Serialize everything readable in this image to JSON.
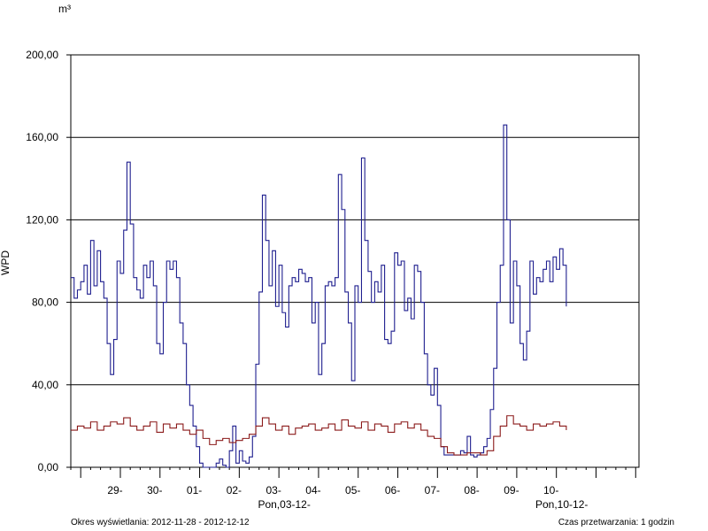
{
  "chart_data": {
    "type": "line",
    "unit": "m³",
    "ylabel": "WPD",
    "ylim": [
      0,
      200
    ],
    "y_ticks": [
      0,
      40,
      80,
      120,
      160,
      200
    ],
    "y_tick_labels": [
      "0,00",
      "40,00",
      "80,00",
      "120,00",
      "160,00",
      "200,00"
    ],
    "grid": "horizontal",
    "x_range_hours": [
      0,
      344
    ],
    "day_ticks": [
      "29-",
      "30-",
      "01-",
      "02-",
      "03-",
      "04-",
      "05-",
      "06-",
      "07-",
      "08-",
      "09-",
      "10-"
    ],
    "week_labels": [
      "Pon,03-12-",
      "Pon,10-12-"
    ],
    "series": [
      {
        "color": "#1f1f8f",
        "points": [
          [
            0,
            92
          ],
          [
            2,
            82
          ],
          [
            4,
            86
          ],
          [
            6,
            90
          ],
          [
            8,
            98
          ],
          [
            10,
            84
          ],
          [
            12,
            110
          ],
          [
            14,
            88
          ],
          [
            16,
            105
          ],
          [
            18,
            90
          ],
          [
            20,
            82
          ],
          [
            22,
            60
          ],
          [
            24,
            45
          ],
          [
            26,
            62
          ],
          [
            28,
            100
          ],
          [
            30,
            94
          ],
          [
            32,
            115
          ],
          [
            34,
            148
          ],
          [
            36,
            118
          ],
          [
            38,
            92
          ],
          [
            40,
            86
          ],
          [
            42,
            82
          ],
          [
            44,
            98
          ],
          [
            46,
            92
          ],
          [
            48,
            100
          ],
          [
            50,
            88
          ],
          [
            52,
            60
          ],
          [
            54,
            55
          ],
          [
            56,
            80
          ],
          [
            58,
            100
          ],
          [
            60,
            96
          ],
          [
            62,
            100
          ],
          [
            64,
            92
          ],
          [
            66,
            70
          ],
          [
            68,
            60
          ],
          [
            70,
            40
          ],
          [
            72,
            30
          ],
          [
            74,
            20
          ],
          [
            76,
            10
          ],
          [
            78,
            2
          ],
          [
            80,
            0
          ],
          [
            82,
            0
          ],
          [
            84,
            0
          ],
          [
            86,
            0
          ],
          [
            88,
            2
          ],
          [
            90,
            4
          ],
          [
            92,
            1
          ],
          [
            94,
            0
          ],
          [
            96,
            8
          ],
          [
            98,
            20
          ],
          [
            100,
            2
          ],
          [
            102,
            8
          ],
          [
            104,
            3
          ],
          [
            106,
            2
          ],
          [
            108,
            5
          ],
          [
            110,
            15
          ],
          [
            112,
            50
          ],
          [
            114,
            85
          ],
          [
            116,
            132
          ],
          [
            118,
            110
          ],
          [
            120,
            88
          ],
          [
            122,
            105
          ],
          [
            124,
            78
          ],
          [
            126,
            98
          ],
          [
            128,
            75
          ],
          [
            130,
            68
          ],
          [
            132,
            88
          ],
          [
            134,
            92
          ],
          [
            136,
            90
          ],
          [
            138,
            96
          ],
          [
            140,
            94
          ],
          [
            142,
            90
          ],
          [
            144,
            92
          ],
          [
            146,
            70
          ],
          [
            148,
            80
          ],
          [
            150,
            45
          ],
          [
            152,
            60
          ],
          [
            154,
            88
          ],
          [
            156,
            90
          ],
          [
            158,
            88
          ],
          [
            160,
            92
          ],
          [
            162,
            142
          ],
          [
            164,
            125
          ],
          [
            166,
            85
          ],
          [
            168,
            70
          ],
          [
            170,
            42
          ],
          [
            172,
            88
          ],
          [
            174,
            80
          ],
          [
            176,
            150
          ],
          [
            178,
            110
          ],
          [
            180,
            95
          ],
          [
            182,
            80
          ],
          [
            184,
            90
          ],
          [
            186,
            85
          ],
          [
            188,
            98
          ],
          [
            190,
            62
          ],
          [
            192,
            60
          ],
          [
            194,
            66
          ],
          [
            196,
            104
          ],
          [
            198,
            98
          ],
          [
            200,
            100
          ],
          [
            202,
            76
          ],
          [
            204,
            82
          ],
          [
            206,
            72
          ],
          [
            208,
            98
          ],
          [
            210,
            95
          ],
          [
            212,
            80
          ],
          [
            214,
            55
          ],
          [
            216,
            40
          ],
          [
            218,
            35
          ],
          [
            220,
            48
          ],
          [
            222,
            30
          ],
          [
            224,
            10
          ],
          [
            226,
            6
          ],
          [
            228,
            6
          ],
          [
            230,
            6
          ],
          [
            232,
            6
          ],
          [
            234,
            6
          ],
          [
            236,
            8
          ],
          [
            238,
            7
          ],
          [
            240,
            15
          ],
          [
            242,
            6
          ],
          [
            244,
            5
          ],
          [
            246,
            6
          ],
          [
            248,
            7
          ],
          [
            250,
            10
          ],
          [
            252,
            14
          ],
          [
            254,
            28
          ],
          [
            256,
            48
          ],
          [
            258,
            80
          ],
          [
            260,
            98
          ],
          [
            262,
            166
          ],
          [
            264,
            120
          ],
          [
            266,
            70
          ],
          [
            268,
            100
          ],
          [
            270,
            88
          ],
          [
            272,
            60
          ],
          [
            274,
            52
          ],
          [
            276,
            66
          ],
          [
            278,
            100
          ],
          [
            280,
            84
          ],
          [
            282,
            92
          ],
          [
            284,
            90
          ],
          [
            286,
            96
          ],
          [
            288,
            100
          ],
          [
            290,
            90
          ],
          [
            292,
            102
          ],
          [
            294,
            96
          ],
          [
            296,
            106
          ],
          [
            298,
            98
          ],
          [
            300,
            78
          ]
        ]
      },
      {
        "color": "#8b1a1a",
        "points": [
          [
            0,
            18
          ],
          [
            4,
            20
          ],
          [
            8,
            19
          ],
          [
            12,
            22
          ],
          [
            16,
            18
          ],
          [
            20,
            20
          ],
          [
            24,
            22
          ],
          [
            28,
            21
          ],
          [
            32,
            24
          ],
          [
            36,
            20
          ],
          [
            40,
            18
          ],
          [
            44,
            20
          ],
          [
            48,
            22
          ],
          [
            52,
            17
          ],
          [
            56,
            21
          ],
          [
            60,
            19
          ],
          [
            64,
            21
          ],
          [
            68,
            18
          ],
          [
            72,
            16
          ],
          [
            76,
            18
          ],
          [
            80,
            14
          ],
          [
            84,
            11
          ],
          [
            88,
            13
          ],
          [
            92,
            14
          ],
          [
            96,
            12
          ],
          [
            100,
            13
          ],
          [
            104,
            14
          ],
          [
            108,
            16
          ],
          [
            112,
            20
          ],
          [
            116,
            24
          ],
          [
            120,
            21
          ],
          [
            124,
            18
          ],
          [
            128,
            20
          ],
          [
            132,
            16
          ],
          [
            136,
            19
          ],
          [
            140,
            20
          ],
          [
            144,
            21
          ],
          [
            148,
            18
          ],
          [
            152,
            19
          ],
          [
            156,
            21
          ],
          [
            160,
            18
          ],
          [
            164,
            23
          ],
          [
            168,
            20
          ],
          [
            172,
            19
          ],
          [
            176,
            22
          ],
          [
            180,
            18
          ],
          [
            184,
            21
          ],
          [
            188,
            20
          ],
          [
            192,
            17
          ],
          [
            196,
            21
          ],
          [
            200,
            22
          ],
          [
            204,
            19
          ],
          [
            208,
            21
          ],
          [
            212,
            18
          ],
          [
            216,
            15
          ],
          [
            220,
            14
          ],
          [
            224,
            10
          ],
          [
            228,
            7
          ],
          [
            232,
            6
          ],
          [
            236,
            6
          ],
          [
            240,
            7
          ],
          [
            244,
            7
          ],
          [
            248,
            6
          ],
          [
            252,
            8
          ],
          [
            256,
            15
          ],
          [
            260,
            20
          ],
          [
            264,
            25
          ],
          [
            268,
            21
          ],
          [
            272,
            20
          ],
          [
            276,
            18
          ],
          [
            280,
            21
          ],
          [
            284,
            20
          ],
          [
            288,
            21
          ],
          [
            292,
            22
          ],
          [
            296,
            20
          ],
          [
            300,
            18
          ]
        ]
      }
    ]
  },
  "footer": {
    "left": "Okres wyświetlania: 2012-11-28 - 2012-12-12",
    "right": "Czas przetwarzania: 1 godzin"
  }
}
